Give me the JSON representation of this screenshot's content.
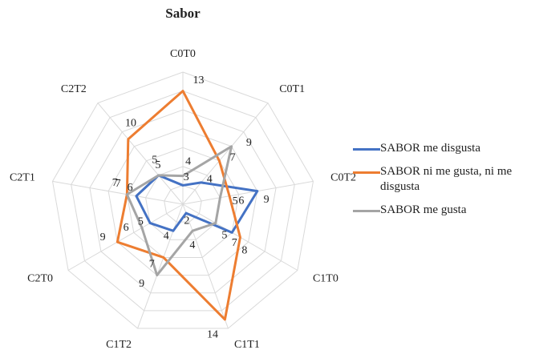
{
  "chart_data": {
    "type": "radar",
    "title": "Sabor",
    "categories": [
      "C0T0",
      "C0T1",
      "C0T2",
      "C1T0",
      "C1T1",
      "C1T2",
      "C2T0",
      "C2T1",
      "C2T2"
    ],
    "series": [
      {
        "name": "SABOR  me disgusta",
        "color": "#4472c4",
        "values": [
          3,
          4,
          9,
          7,
          2,
          4,
          5,
          6,
          5
        ]
      },
      {
        "name": "SABOR  ni me gusta, ni me disgusta",
        "color": "#ed7d31",
        "values": [
          13,
          7,
          6,
          8,
          14,
          7,
          9,
          7,
          10
        ]
      },
      {
        "name": "SABOR  me gusta",
        "color": "#a5a5a5",
        "values": [
          4,
          9,
          5,
          5,
          4,
          9,
          6,
          7,
          5
        ]
      }
    ],
    "ylim": [
      1,
      15
    ],
    "yticks": [
      3,
      5,
      7,
      9,
      11,
      13,
      15
    ],
    "grid": true
  }
}
